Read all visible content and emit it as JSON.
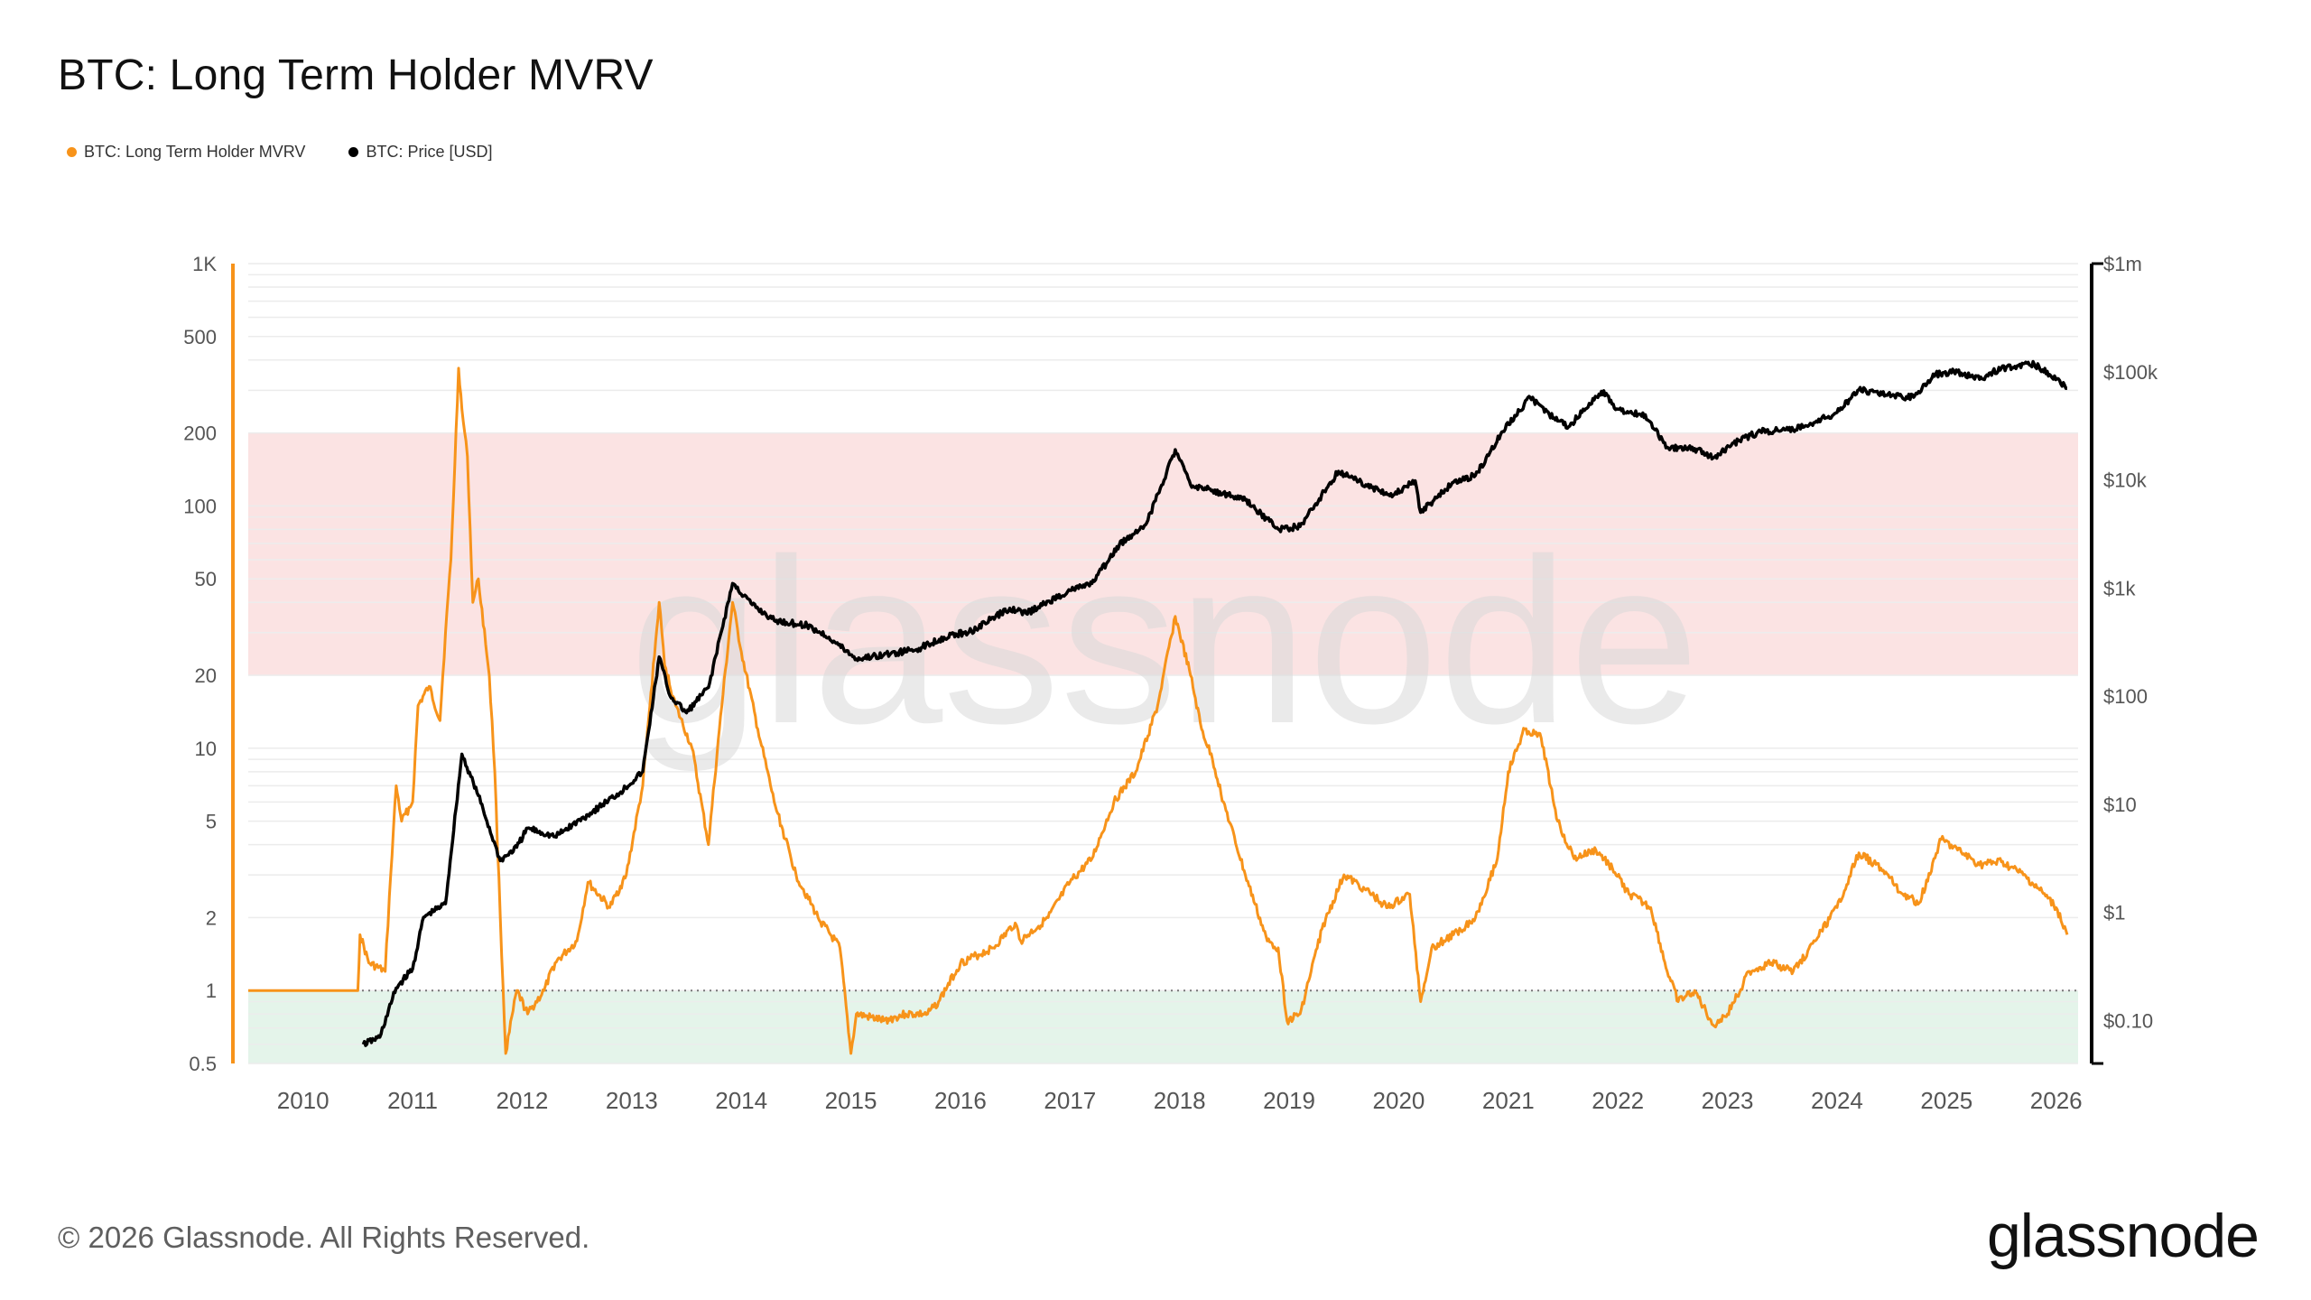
{
  "page": {
    "title": "BTC: Long Term Holder MVRV",
    "copyright": "© 2026 Glassnode. All Rights Reserved.",
    "logo_text": "glassnode",
    "watermark_text": "glassnode"
  },
  "legend": [
    {
      "label": "BTC: Long Term Holder MVRV",
      "color": "#f7931a"
    },
    {
      "label": "BTC: Price [USD]",
      "color": "#000000"
    }
  ],
  "chart_data": {
    "type": "line",
    "title": "BTC: Long Term Holder MVRV",
    "x_ticks": [
      "2010",
      "2011",
      "2012",
      "2013",
      "2014",
      "2015",
      "2016",
      "2017",
      "2018",
      "2019",
      "2020",
      "2021",
      "2022",
      "2023",
      "2024",
      "2025",
      "2026"
    ],
    "x_range": [
      2009.5,
      2026.2
    ],
    "left_axis": {
      "scale": "log",
      "range": [
        0.5,
        1000
      ],
      "ticks": [
        {
          "v": 1000,
          "label": "1K"
        },
        {
          "v": 500,
          "label": "500"
        },
        {
          "v": 200,
          "label": "200"
        },
        {
          "v": 100,
          "label": "100"
        },
        {
          "v": 50,
          "label": "50"
        },
        {
          "v": 20,
          "label": "20"
        },
        {
          "v": 10,
          "label": "10"
        },
        {
          "v": 5,
          "label": "5"
        },
        {
          "v": 2,
          "label": "2"
        },
        {
          "v": 1,
          "label": "1"
        },
        {
          "v": 0.5,
          "label": "0.5"
        }
      ],
      "color": "#f7931a"
    },
    "right_axis": {
      "scale": "log",
      "range": [
        0.04,
        1000000
      ],
      "ticks": [
        {
          "v": 1000000,
          "label": "$1m"
        },
        {
          "v": 100000,
          "label": "$100k"
        },
        {
          "v": 10000,
          "label": "$10k"
        },
        {
          "v": 1000,
          "label": "$1k"
        },
        {
          "v": 100,
          "label": "$100"
        },
        {
          "v": 10,
          "label": "$10"
        },
        {
          "v": 1,
          "label": "$1"
        },
        {
          "v": 0.1,
          "label": "$0.10"
        }
      ],
      "color": "#000000"
    },
    "bands": [
      {
        "from": 20,
        "to": 200,
        "color": "#fbe3e3",
        "axis": "left"
      },
      {
        "from": 0.45,
        "to": 1,
        "color": "#e4f4ea",
        "axis": "left"
      }
    ],
    "reference_line": {
      "value": 1,
      "axis": "left"
    },
    "grid": true,
    "legend_position": "top-left",
    "series": [
      {
        "name": "BTC: Long Term Holder MVRV",
        "axis": "left",
        "color": "#f7931a",
        "points": [
          [
            2009.5,
            1
          ],
          [
            2010.5,
            1
          ],
          [
            2010.52,
            1.7
          ],
          [
            2010.6,
            1.3
          ],
          [
            2010.75,
            1.2
          ],
          [
            2010.8,
            3
          ],
          [
            2010.85,
            7
          ],
          [
            2010.9,
            5
          ],
          [
            2011.0,
            6
          ],
          [
            2011.05,
            15
          ],
          [
            2011.15,
            18
          ],
          [
            2011.25,
            13
          ],
          [
            2011.3,
            30
          ],
          [
            2011.35,
            60
          ],
          [
            2011.42,
            370
          ],
          [
            2011.45,
            250
          ],
          [
            2011.5,
            160
          ],
          [
            2011.55,
            40
          ],
          [
            2011.6,
            50
          ],
          [
            2011.7,
            20
          ],
          [
            2011.75,
            8
          ],
          [
            2011.8,
            2
          ],
          [
            2011.85,
            0.55
          ],
          [
            2011.95,
            1
          ],
          [
            2012.05,
            0.8
          ],
          [
            2012.2,
            1
          ],
          [
            2012.3,
            1.3
          ],
          [
            2012.5,
            1.6
          ],
          [
            2012.6,
            2.8
          ],
          [
            2012.8,
            2.2
          ],
          [
            2012.95,
            3
          ],
          [
            2013.1,
            7
          ],
          [
            2013.25,
            40
          ],
          [
            2013.3,
            22
          ],
          [
            2013.4,
            15
          ],
          [
            2013.55,
            10
          ],
          [
            2013.7,
            4
          ],
          [
            2013.8,
            12
          ],
          [
            2013.92,
            40
          ],
          [
            2014.0,
            25
          ],
          [
            2014.15,
            12
          ],
          [
            2014.3,
            6
          ],
          [
            2014.5,
            3
          ],
          [
            2014.7,
            2
          ],
          [
            2014.9,
            1.5
          ],
          [
            2015.0,
            0.55
          ],
          [
            2015.05,
            0.8
          ],
          [
            2015.3,
            0.75
          ],
          [
            2015.5,
            0.8
          ],
          [
            2015.7,
            0.8
          ],
          [
            2015.8,
            0.9
          ],
          [
            2016.0,
            1.3
          ],
          [
            2016.3,
            1.5
          ],
          [
            2016.5,
            1.9
          ],
          [
            2016.55,
            1.6
          ],
          [
            2016.8,
            2
          ],
          [
            2017.0,
            2.8
          ],
          [
            2017.2,
            3.5
          ],
          [
            2017.4,
            6
          ],
          [
            2017.6,
            8
          ],
          [
            2017.8,
            15
          ],
          [
            2017.96,
            35
          ],
          [
            2018.1,
            20
          ],
          [
            2018.2,
            12
          ],
          [
            2018.3,
            9
          ],
          [
            2018.4,
            6
          ],
          [
            2018.6,
            3
          ],
          [
            2018.8,
            1.6
          ],
          [
            2018.9,
            1.5
          ],
          [
            2018.98,
            0.75
          ],
          [
            2019.1,
            0.8
          ],
          [
            2019.3,
            1.8
          ],
          [
            2019.5,
            3
          ],
          [
            2019.7,
            2.6
          ],
          [
            2019.9,
            2.2
          ],
          [
            2020.1,
            2.5
          ],
          [
            2020.2,
            0.9
          ],
          [
            2020.3,
            1.5
          ],
          [
            2020.5,
            1.7
          ],
          [
            2020.7,
            2
          ],
          [
            2020.9,
            3.5
          ],
          [
            2021.0,
            8
          ],
          [
            2021.15,
            12
          ],
          [
            2021.3,
            11
          ],
          [
            2021.45,
            5
          ],
          [
            2021.6,
            3.5
          ],
          [
            2021.8,
            3.8
          ],
          [
            2021.95,
            3.2
          ],
          [
            2022.1,
            2.5
          ],
          [
            2022.3,
            2.2
          ],
          [
            2022.45,
            1.2
          ],
          [
            2022.55,
            0.9
          ],
          [
            2022.7,
            1
          ],
          [
            2022.87,
            0.72
          ],
          [
            2023.0,
            0.8
          ],
          [
            2023.2,
            1.2
          ],
          [
            2023.4,
            1.3
          ],
          [
            2023.6,
            1.2
          ],
          [
            2023.8,
            1.6
          ],
          [
            2024.0,
            2.2
          ],
          [
            2024.2,
            3.7
          ],
          [
            2024.4,
            3.2
          ],
          [
            2024.6,
            2.5
          ],
          [
            2024.75,
            2.3
          ],
          [
            2024.95,
            4.2
          ],
          [
            2025.1,
            3.8
          ],
          [
            2025.3,
            3.3
          ],
          [
            2025.5,
            3.4
          ],
          [
            2025.7,
            3
          ],
          [
            2025.85,
            2.6
          ],
          [
            2026.0,
            2.2
          ],
          [
            2026.1,
            1.7
          ]
        ]
      },
      {
        "name": "BTC: Price [USD]",
        "axis": "right",
        "color": "#000000",
        "points": [
          [
            2010.55,
            0.06
          ],
          [
            2010.7,
            0.07
          ],
          [
            2010.85,
            0.2
          ],
          [
            2011.0,
            0.3
          ],
          [
            2011.1,
            0.9
          ],
          [
            2011.3,
            1.2
          ],
          [
            2011.45,
            29
          ],
          [
            2011.6,
            12
          ],
          [
            2011.8,
            3
          ],
          [
            2011.95,
            4
          ],
          [
            2012.05,
            6
          ],
          [
            2012.3,
            5
          ],
          [
            2012.6,
            8
          ],
          [
            2012.9,
            13
          ],
          [
            2013.1,
            20
          ],
          [
            2013.25,
            230
          ],
          [
            2013.35,
            100
          ],
          [
            2013.5,
            70
          ],
          [
            2013.7,
            120
          ],
          [
            2013.92,
            1100
          ],
          [
            2014.1,
            700
          ],
          [
            2014.3,
            500
          ],
          [
            2014.6,
            450
          ],
          [
            2014.8,
            350
          ],
          [
            2015.05,
            220
          ],
          [
            2015.3,
            240
          ],
          [
            2015.6,
            270
          ],
          [
            2015.85,
            350
          ],
          [
            2016.1,
            400
          ],
          [
            2016.45,
            650
          ],
          [
            2016.6,
            580
          ],
          [
            2017.0,
            950
          ],
          [
            2017.2,
            1100
          ],
          [
            2017.45,
            2500
          ],
          [
            2017.7,
            4000
          ],
          [
            2017.96,
            19000
          ],
          [
            2018.1,
            9000
          ],
          [
            2018.3,
            8000
          ],
          [
            2018.6,
            6500
          ],
          [
            2018.9,
            3500
          ],
          [
            2019.1,
            3700
          ],
          [
            2019.45,
            12000
          ],
          [
            2019.7,
            9000
          ],
          [
            2019.95,
            7200
          ],
          [
            2020.15,
            9800
          ],
          [
            2020.2,
            5000
          ],
          [
            2020.5,
            9500
          ],
          [
            2020.7,
            11000
          ],
          [
            2020.95,
            28000
          ],
          [
            2021.2,
            58000
          ],
          [
            2021.45,
            35000
          ],
          [
            2021.55,
            31000
          ],
          [
            2021.85,
            66000
          ],
          [
            2022.0,
            45000
          ],
          [
            2022.25,
            40000
          ],
          [
            2022.45,
            20000
          ],
          [
            2022.7,
            19500
          ],
          [
            2022.87,
            16000
          ],
          [
            2023.1,
            23000
          ],
          [
            2023.3,
            28000
          ],
          [
            2023.6,
            29000
          ],
          [
            2023.8,
            34000
          ],
          [
            2024.0,
            42000
          ],
          [
            2024.2,
            68000
          ],
          [
            2024.5,
            60000
          ],
          [
            2024.7,
            58000
          ],
          [
            2024.9,
            95000
          ],
          [
            2025.1,
            100000
          ],
          [
            2025.3,
            85000
          ],
          [
            2025.5,
            108000
          ],
          [
            2025.8,
            118000
          ],
          [
            2025.95,
            92000
          ],
          [
            2026.1,
            70000
          ]
        ]
      }
    ]
  }
}
